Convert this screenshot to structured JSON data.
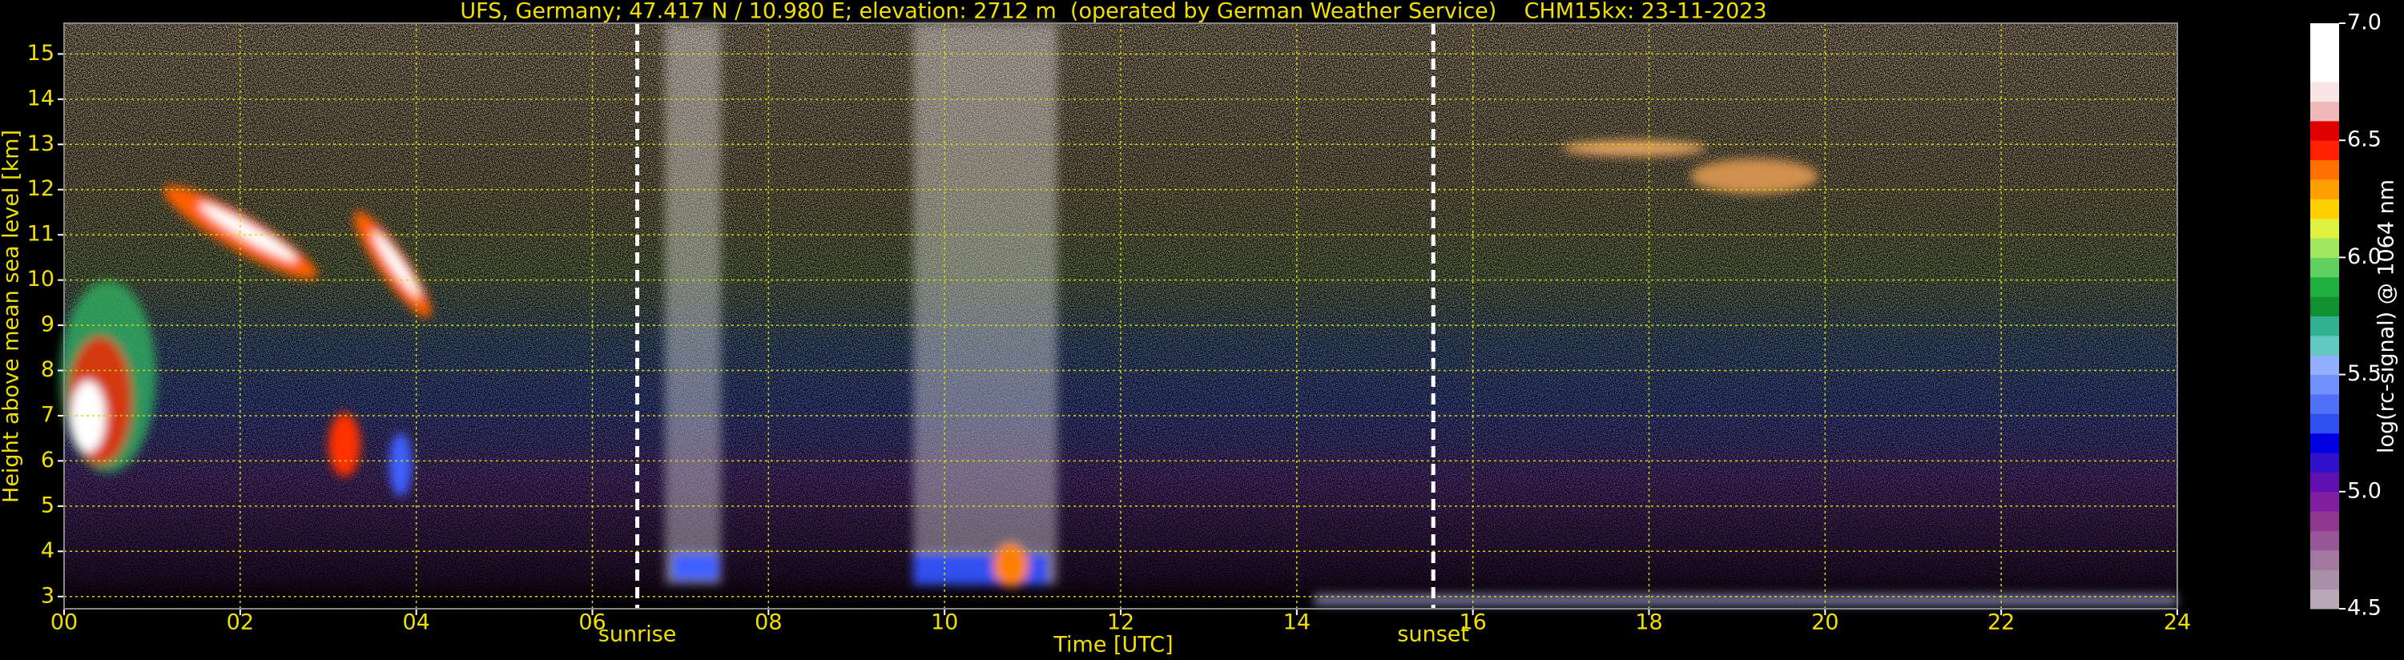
{
  "chart_data": {
    "type": "heatmap",
    "title": "UFS, Germany; 47.417 N / 10.980 E; elevation: 2712 m  (operated by German Weather Service)    CHM15kx: 23-11-2023",
    "xlabel": "Time [UTC]",
    "ylabel": "Height above mean sea level [km]",
    "xlim": [
      0,
      24
    ],
    "xticks": [
      {
        "value": 0,
        "label": "00"
      },
      {
        "value": 2,
        "label": "02"
      },
      {
        "value": 4,
        "label": "04"
      },
      {
        "value": 6,
        "label": "06"
      },
      {
        "value": 8,
        "label": "08"
      },
      10,
      12,
      14,
      16,
      18,
      20,
      22,
      24
    ],
    "ylim": [
      2.73,
      15.68
    ],
    "yticks": [
      3,
      4,
      5,
      6,
      7,
      8,
      9,
      10,
      11,
      12,
      13,
      14,
      15
    ],
    "grid": true,
    "grid_color": "#d8d800",
    "annotations": [
      {
        "text": "sunrise",
        "x": 6.51
      },
      {
        "text": "sunset",
        "x": 15.55
      }
    ],
    "colorbar": {
      "label": "log(rc-signal) @ 1064 nm",
      "lim": [
        4.5,
        7
      ],
      "ticks": [
        4.5,
        {
          "value": 5,
          "label": "5.0"
        },
        5.5,
        {
          "value": 6,
          "label": "6.0"
        },
        6.5,
        {
          "value": 7,
          "label": "7.0"
        }
      ],
      "colors": [
        "#b8a8b8",
        "#a890a8",
        "#a078a0",
        "#985898",
        "#903890",
        "#8020a0",
        "#6010b0",
        "#3010c8",
        "#0000e0",
        "#3050f0",
        "#5070f8",
        "#7090ff",
        "#90b0ff",
        "#60c8c0",
        "#30b090",
        "#109030",
        "#20b040",
        "#60d060",
        "#a0e860",
        "#e0f040",
        "#ffd000",
        "#ffa000",
        "#ff7000",
        "#ff2000",
        "#e00000",
        "#f0b8b8",
        "#f8e4e4",
        "#ffffff",
        "#ffffff",
        "#ffffff"
      ]
    }
  }
}
